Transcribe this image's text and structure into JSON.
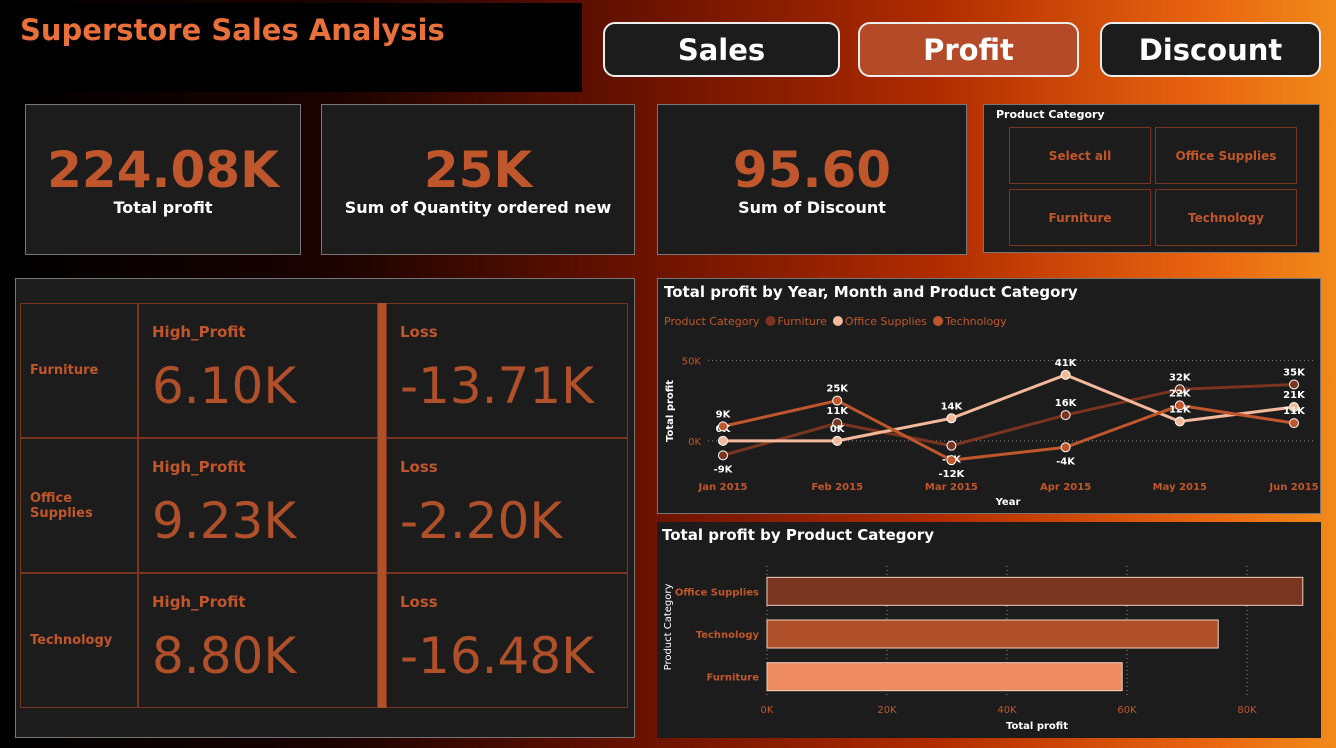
{
  "header": {
    "title": "Superstore Sales Analysis"
  },
  "nav": {
    "tabs": [
      "Sales",
      "Profit",
      "Discount"
    ],
    "active": 1
  },
  "kpis": [
    {
      "value": "224.08K",
      "label": "Total profit"
    },
    {
      "value": "25K",
      "label": "Sum of Quantity ordered new"
    },
    {
      "value": "95.60",
      "label": "Sum of Discount"
    }
  ],
  "slicer": {
    "title": "Product Category",
    "options": [
      "Select all",
      "Office Supplies",
      "Furniture",
      "Technology"
    ]
  },
  "matrix": {
    "rows": [
      {
        "category": "Furniture",
        "high_label": "High_Profit",
        "high": "6.10K",
        "loss_label": "Loss",
        "loss": "-13.71K"
      },
      {
        "category": "Office Supplies",
        "high_label": "High_Profit",
        "high": "9.23K",
        "loss_label": "Loss",
        "loss": "-2.20K"
      },
      {
        "category": "Technology",
        "high_label": "High_Profit",
        "high": "8.80K",
        "loss_label": "Loss",
        "loss": "-16.48K"
      }
    ]
  },
  "chart_data": [
    {
      "type": "line",
      "title": "Total profit by Year, Month and Product Category",
      "legend_title": "Product Category",
      "categories": [
        "Jan 2015",
        "Feb 2015",
        "Mar 2015",
        "Apr 2015",
        "May 2015",
        "Jun 2015"
      ],
      "xlabel": "Year",
      "ylabel": "Total profit",
      "ylim": [
        -15000,
        62000
      ],
      "yticks": [
        {
          "value": 0,
          "label": "0K"
        },
        {
          "value": 50000,
          "label": "50K"
        }
      ],
      "grid": true,
      "series": [
        {
          "name": "Furniture",
          "color": "#7a3520",
          "values": [
            -9000,
            11000,
            -3000,
            16000,
            32000,
            35000
          ],
          "value_labels": [
            "-9K",
            "11K",
            "-3K",
            "16K",
            "32K",
            "35K"
          ]
        },
        {
          "name": "Office Supplies",
          "color": "#f4b89a",
          "values": [
            0,
            0,
            14000,
            41000,
            12000,
            21000
          ],
          "value_labels": [
            "0K",
            "0K",
            "14K",
            "41K",
            "12K",
            "21K"
          ]
        },
        {
          "name": "Technology",
          "color": "#c0562b",
          "values": [
            9000,
            25000,
            -12000,
            -4000,
            22000,
            11000
          ],
          "value_labels": [
            "9K",
            "25K",
            "-12K",
            "-4K",
            "22K",
            "11K"
          ]
        }
      ]
    },
    {
      "type": "hbar",
      "title": "Total profit by Product Category",
      "categories": [
        "Office Supplies",
        "Technology",
        "Furniture"
      ],
      "values": [
        89300,
        75200,
        59200
      ],
      "colors": [
        "#7a3520",
        "#b0502a",
        "#ee8a60"
      ],
      "xlabel": "Total profit",
      "ylabel": "Product Category",
      "xlim": [
        0,
        90000
      ],
      "xticks": [
        {
          "value": 0,
          "label": "0K"
        },
        {
          "value": 20000,
          "label": "20K"
        },
        {
          "value": 40000,
          "label": "40K"
        },
        {
          "value": 60000,
          "label": "60K"
        },
        {
          "value": 80000,
          "label": "80K"
        }
      ],
      "grid": true
    }
  ]
}
